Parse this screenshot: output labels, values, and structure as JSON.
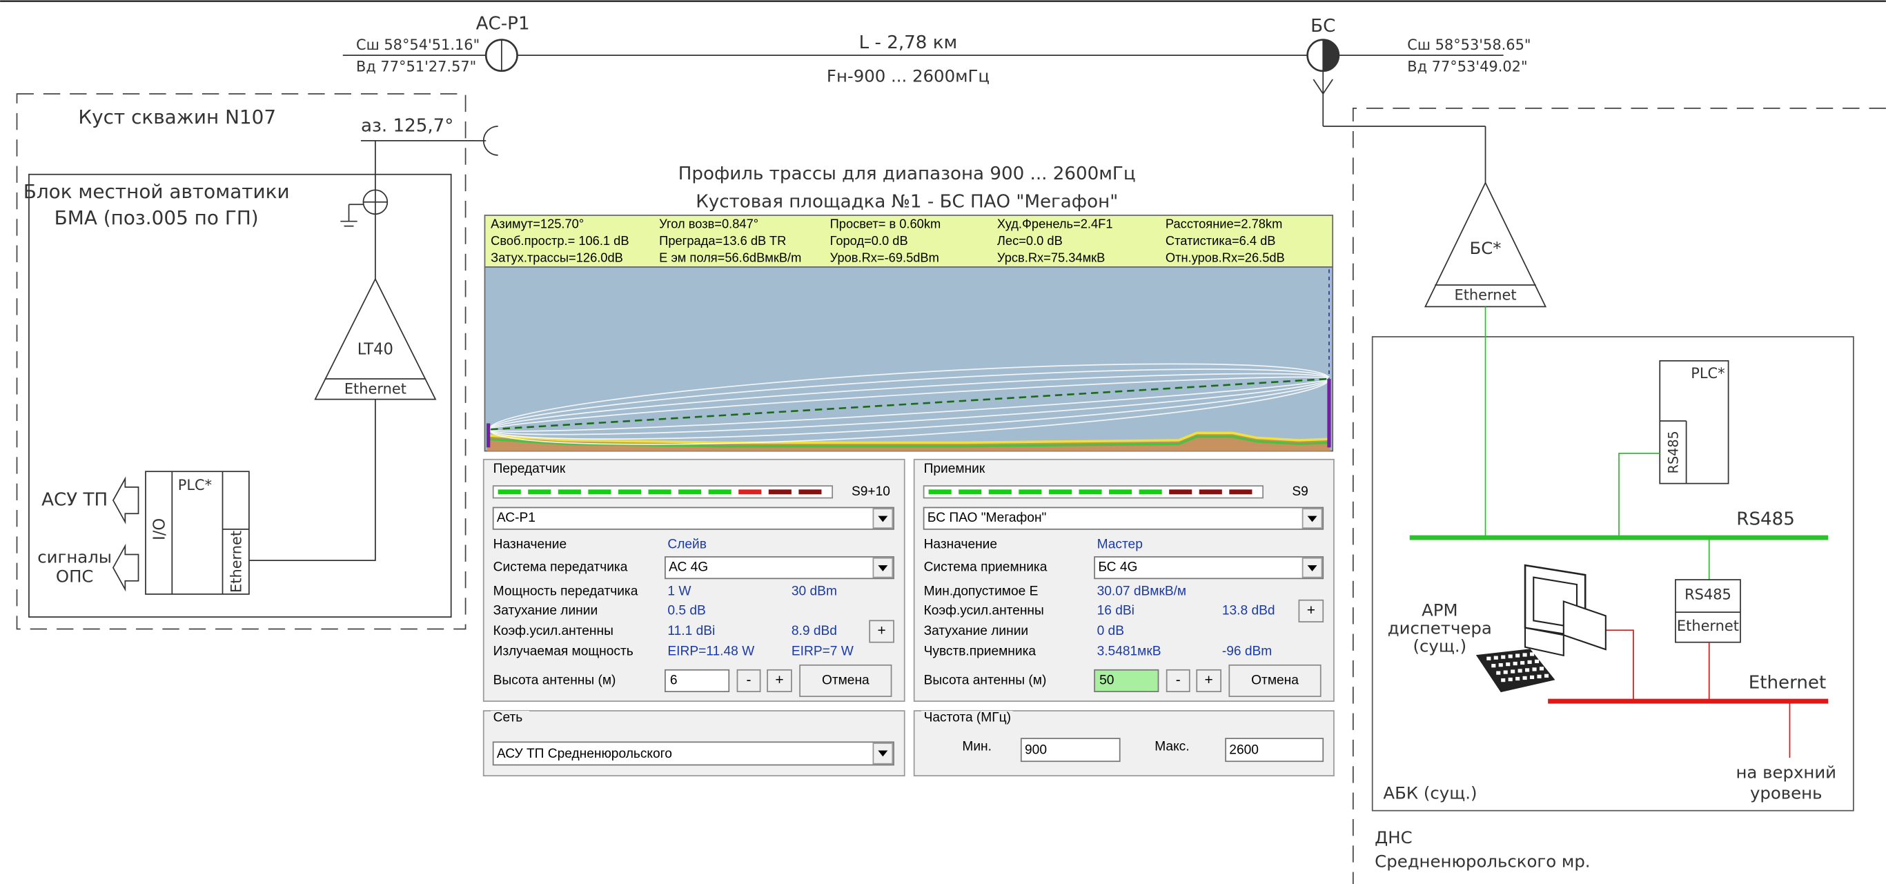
{
  "link": {
    "left_station": "АС-Р1",
    "right_station": "БС",
    "left_coords": [
      "Сш 58°54'51.16\"",
      "Вд 77°51'27.57\""
    ],
    "right_coords": [
      "Сш 58°53'58.65\"",
      "Вд 77°53'49.02\""
    ],
    "distance": "L - 2,78 км",
    "frequency": "Fн-900 ... 2600мГц"
  },
  "well_pad": {
    "title": "Куст скважин N107",
    "azimuth": "аз. 125,7°",
    "block": [
      "Блок местной автоматики",
      "БМА (поз.005 по ГП)"
    ],
    "radio": {
      "label": "LT40",
      "port": "Ethernet"
    },
    "plc": {
      "label": "PLC*",
      "io": "I/O",
      "port": "Ethernet"
    },
    "inputs": [
      "АСУ ТП",
      "сигналы",
      "ОПС"
    ]
  },
  "profile": {
    "title": [
      "Профиль трассы для диапазона 900 ... 2600мГц",
      "Кустовая площадка №1 - БС ПАО \"Мегафон\""
    ],
    "info": [
      [
        "Азимут=125.70°",
        "Угол возв=0.847°",
        "Просвет= в 0.60km",
        "Худ.Френель=2.4F1",
        "Расстояние=2.78km"
      ],
      [
        "Своб.простр.= 106.1 dB",
        "Преграда=13.6 dB TR",
        "Город=0.0 dB",
        "Лес=0.0 dB",
        "Статистика=6.4 dB"
      ],
      [
        "Затух.трассы=126.0dB",
        "Е эм поля=56.6dBмкВ/m",
        "Уров.Rx=-69.5dBm",
        "Урсв.Rx=75.34мкВ",
        "Отн.уров.Rx=26.5dB"
      ]
    ]
  },
  "transmitter": {
    "title": "Передатчик",
    "signal": "S9+10",
    "station": "АС-Р1",
    "rows": [
      [
        "Назначение",
        "Слейв"
      ],
      [
        "Система передатчика",
        "АС 4G"
      ],
      [
        "Мощность передатчика",
        "1 W",
        "30 dBm"
      ],
      [
        "Затухание линии",
        "0.5 dB"
      ],
      [
        "Коэф.усил.антенны",
        "11.1 dBi",
        "8.9 dBd"
      ],
      [
        "Излучаемая мощность",
        "EIRP=11.48 W",
        "EIRP=7 W"
      ]
    ],
    "gain_button": "+",
    "height_label": "Высота антенны (м)",
    "height": "6",
    "buttons": [
      "-",
      "+",
      "Отмена"
    ]
  },
  "receiver": {
    "title": "Приемник",
    "signal": "S9",
    "station": "БС ПАО \"Мегафон\"",
    "rows": [
      [
        "Назначение",
        "Мастер"
      ],
      [
        "Система приемника",
        "БС 4G"
      ],
      [
        "Мин.допустимое Е",
        "30.07 dBмкВ/м"
      ],
      [
        "Коэф.усил.антенны",
        "16 dBi",
        "13.8 dBd"
      ],
      [
        "Затухание линии",
        "0 dB"
      ],
      [
        "Чувств.приемника",
        "3.5481мкВ",
        "-96 dBm"
      ]
    ],
    "gain_button": "+",
    "height_label": "Высота антенны (м)",
    "height": "50",
    "buttons": [
      "-",
      "+",
      "Отмена"
    ]
  },
  "network": {
    "title": "Сеть",
    "value": "АСУ ТП Средненюрольского"
  },
  "frequency": {
    "title": "Частота (МГц)",
    "min_label": "Мин.",
    "min": "900",
    "max_label": "Макс.",
    "max": "2600"
  },
  "dns": {
    "bs": {
      "label": "БС*",
      "port": "Ethernet"
    },
    "plc": {
      "label": "PLC*",
      "port": "RS485"
    },
    "rs485_bus": "RS485",
    "converter": [
      "RS485",
      "Ethernet"
    ],
    "ethernet_bus": "Ethernet",
    "workstation": [
      "АРМ",
      "диспетчера",
      "(сущ.)"
    ],
    "uplink": [
      "на верхний",
      "уровень"
    ],
    "building": "АБК (сущ.)",
    "site": [
      "ДНС",
      "Средненюрольского мр."
    ]
  }
}
